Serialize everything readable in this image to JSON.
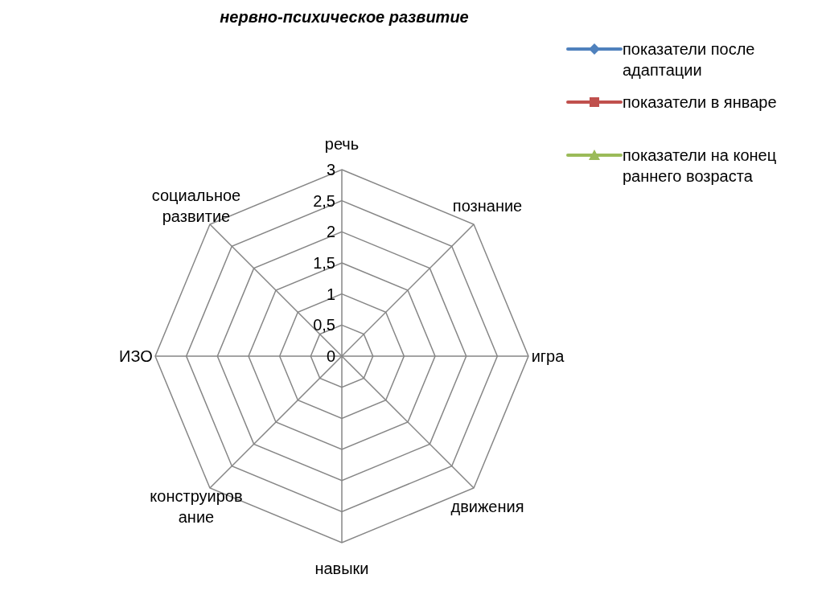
{
  "chart_data": {
    "type": "radar",
    "title": "нервно-психическое развитие",
    "categories": [
      "речь",
      "познание",
      "игра",
      "движения",
      "навыки",
      "конструирование",
      "ИЗО",
      "социальное развитие"
    ],
    "series": [
      {
        "name": "показатели после адаптации",
        "color": "#4f81bd",
        "marker": "diamond",
        "values": [
          null,
          null,
          null,
          null,
          null,
          null,
          null,
          null
        ]
      },
      {
        "name": "показатели в январе",
        "color": "#c0504d",
        "marker": "square",
        "values": [
          null,
          null,
          null,
          null,
          null,
          null,
          null,
          null
        ]
      },
      {
        "name": "показатели на конец раннего возраста",
        "color": "#9bbb59",
        "marker": "triangle",
        "values": [
          null,
          null,
          null,
          null,
          null,
          null,
          null,
          null
        ]
      }
    ],
    "ylim": [
      0,
      3
    ],
    "yticks": [
      0,
      {
        "value": 0.5,
        "label": "0,5"
      },
      1,
      {
        "value": 1.5,
        "label": "1,5"
      },
      2,
      {
        "value": 2.5,
        "label": "2,5"
      },
      3
    ],
    "grid": true,
    "legend": "top right"
  }
}
